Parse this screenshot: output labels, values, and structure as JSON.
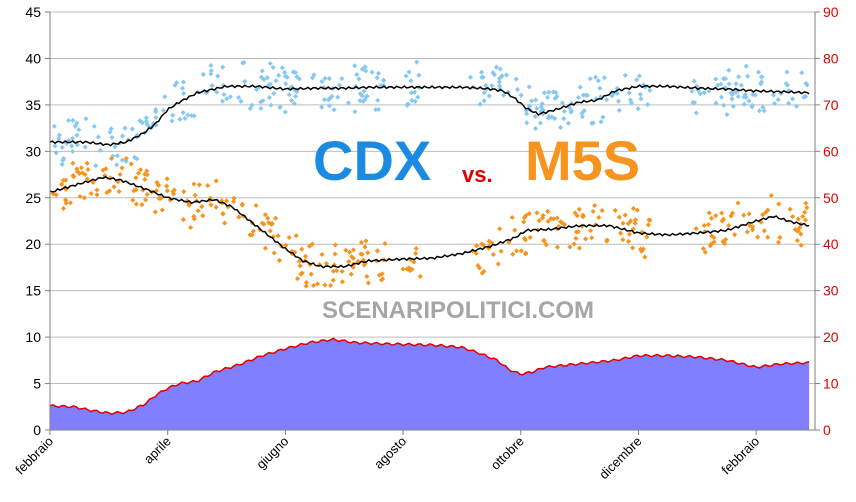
{
  "chart_data": {
    "type": "scatter",
    "title_parts": {
      "left": "CDX",
      "middle": "vs.",
      "right": "M5S"
    },
    "watermark": "SCENARIPOLITICI.COM",
    "x_labels": [
      "febbraio",
      "aprile",
      "giugno",
      "agosto",
      "ottobre",
      "dicembre",
      "febbraio"
    ],
    "x_label_positions": [
      0,
      2,
      4,
      6,
      8,
      10,
      12
    ],
    "x_range": [
      0,
      13
    ],
    "y_left": {
      "range": [
        0,
        45
      ],
      "ticks": [
        0,
        5,
        10,
        15,
        20,
        25,
        30,
        35,
        40,
        45
      ]
    },
    "y_right": {
      "range": [
        0,
        90
      ],
      "ticks": [
        0,
        10,
        20,
        30,
        40,
        50,
        60,
        70,
        80,
        90
      ]
    },
    "grid": true,
    "colors": {
      "cdx": "#87c8f0",
      "m5s": "#f7941d",
      "trend": "#000000",
      "gap_fill": "#7f7fff",
      "gap_line": "#e00000",
      "right_axis": "#e00000"
    },
    "series": [
      {
        "key": "cdx_trend",
        "axis": "left",
        "x": [
          0,
          0.6,
          1.0,
          1.3,
          1.6,
          1.8,
          2.0,
          2.2,
          2.5,
          3.0,
          3.5,
          4.0,
          4.5,
          5.0,
          5.5,
          6.0,
          6.5,
          7.0,
          7.3,
          7.5,
          7.7,
          7.9,
          8.1,
          8.3,
          8.6,
          9.0,
          9.3,
          9.6,
          10.0,
          10.5,
          11.0,
          11.5,
          12.0,
          12.5,
          12.9
        ],
        "y": [
          31,
          31,
          30.7,
          31,
          32,
          33,
          34.5,
          35.3,
          36.3,
          37,
          37,
          36.7,
          36.8,
          36.8,
          36.9,
          36.9,
          36.9,
          36.9,
          36.8,
          36.7,
          36.5,
          35.7,
          34.6,
          34.0,
          34.5,
          35.3,
          35.5,
          36.5,
          37.0,
          37.0,
          36.8,
          36.7,
          36.5,
          36.4,
          36.3
        ]
      },
      {
        "key": "m5s_trend",
        "axis": "left",
        "x": [
          0,
          0.5,
          0.9,
          1.2,
          1.6,
          2.0,
          2.4,
          2.8,
          3.1,
          3.4,
          3.7,
          4.0,
          4.3,
          4.6,
          5.0,
          5.4,
          6.0,
          6.5,
          7.0,
          7.5,
          7.9,
          8.1,
          8.5,
          9.0,
          9.5,
          10.0,
          10.5,
          11.0,
          11.5,
          12.0,
          12.3,
          12.6,
          12.9
        ],
        "y": [
          25.6,
          26.5,
          27.2,
          26.9,
          26.0,
          25.0,
          24.5,
          24.8,
          24.0,
          22.5,
          21.0,
          19.5,
          18.2,
          17.6,
          17.6,
          18.2,
          18.4,
          18.5,
          19.0,
          19.8,
          20.7,
          21.5,
          21.6,
          22.0,
          22.0,
          21.2,
          21.0,
          21.2,
          21.5,
          22.5,
          23.0,
          22.4,
          22.0
        ]
      },
      {
        "key": "gap",
        "axis": "right",
        "x": [
          0,
          0.4,
          0.7,
          1.0,
          1.3,
          1.6,
          1.8,
          2.0,
          2.2,
          2.5,
          2.8,
          3.2,
          3.6,
          4.0,
          4.4,
          4.8,
          5.2,
          5.8,
          6.5,
          7.0,
          7.3,
          7.6,
          7.8,
          8.0,
          8.2,
          8.4,
          8.8,
          9.2,
          9.6,
          10.0,
          10.5,
          11.0,
          11.5,
          12.0,
          12.4,
          12.9
        ],
        "y": [
          5.2,
          5.0,
          4.2,
          3.6,
          3.8,
          5.5,
          7.5,
          9.0,
          10.0,
          10.5,
          12.5,
          14.0,
          16.0,
          17.5,
          18.8,
          19.5,
          18.8,
          18.5,
          18.3,
          17.8,
          16.5,
          15.0,
          13.0,
          12.0,
          12.5,
          13.5,
          14.0,
          14.5,
          15.0,
          16.0,
          16.0,
          15.7,
          15.0,
          13.5,
          14.2,
          14.5
        ]
      }
    ]
  }
}
